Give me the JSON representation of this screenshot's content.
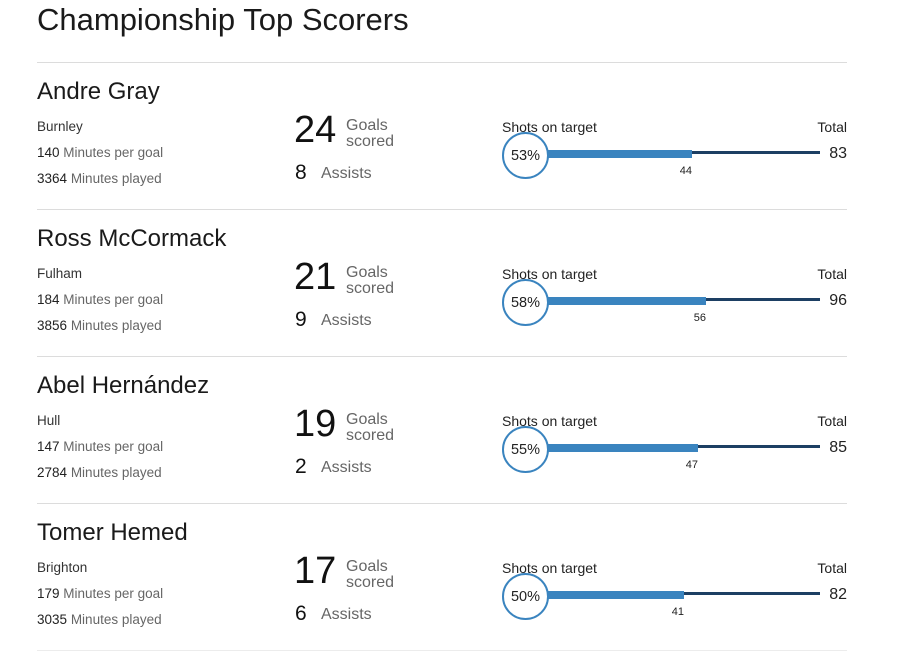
{
  "page": {
    "title": "Championship Top Scorers"
  },
  "labels": {
    "minutes_per_goal": "Minutes per goal",
    "minutes_played": "Minutes played",
    "goals_line1": "Goals",
    "goals_line2": "scored",
    "assists": "Assists",
    "shots_on_target": "Shots on target",
    "total": "Total"
  },
  "colors": {
    "on_target_bar": "#3a84bf",
    "total_track": "#1d3f63",
    "divider": "#dcdcdc"
  },
  "players": [
    {
      "name": "Andre Gray",
      "club": "Burnley",
      "minutes_per_goal": "140",
      "minutes_played": "3364",
      "goals": "24",
      "assists": "8",
      "shots_on_target_pct": "53%",
      "shots_on_target": "44",
      "shots_total": "83"
    },
    {
      "name": "Ross McCormack",
      "club": "Fulham",
      "minutes_per_goal": "184",
      "minutes_played": "3856",
      "goals": "21",
      "assists": "9",
      "shots_on_target_pct": "58%",
      "shots_on_target": "56",
      "shots_total": "96"
    },
    {
      "name": "Abel Hernández",
      "club": "Hull",
      "minutes_per_goal": "147",
      "minutes_played": "2784",
      "goals": "19",
      "assists": "2",
      "shots_on_target_pct": "55%",
      "shots_on_target": "47",
      "shots_total": "85"
    },
    {
      "name": "Tomer Hemed",
      "club": "Brighton",
      "minutes_per_goal": "179",
      "minutes_played": "3035",
      "goals": "17",
      "assists": "6",
      "shots_on_target_pct": "50%",
      "shots_on_target": "41",
      "shots_total": "82"
    }
  ]
}
